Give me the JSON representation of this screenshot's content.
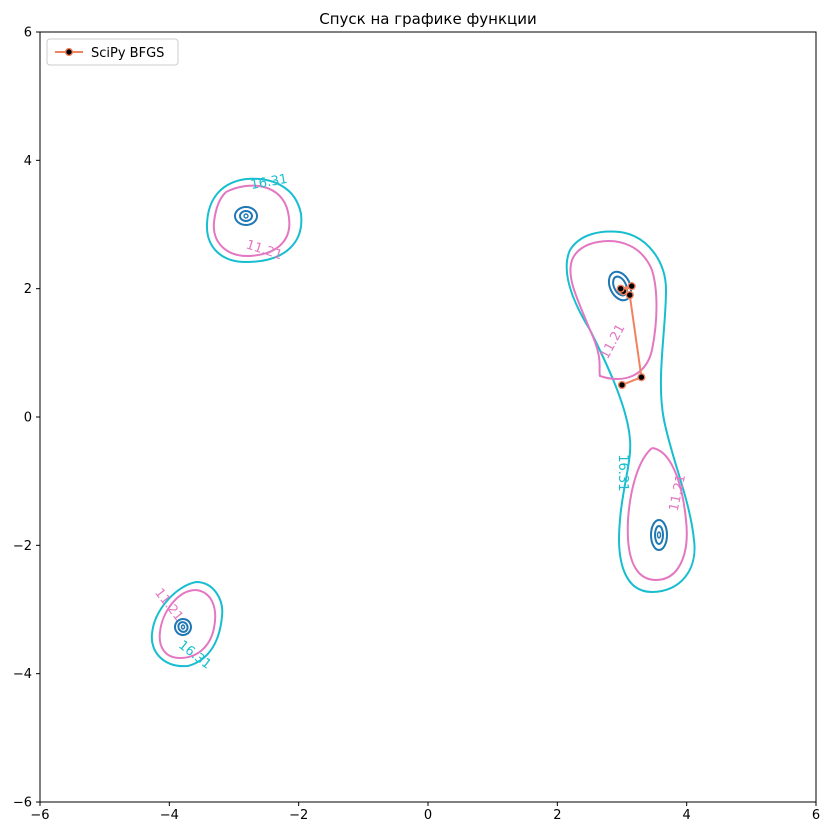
{
  "chart_data": {
    "type": "contour",
    "title": "Спуск на графике функции",
    "xlabel": "",
    "ylabel": "",
    "xlim": [
      -6,
      6
    ],
    "ylim": [
      -6,
      6
    ],
    "xticks": [
      -6,
      -4,
      -2,
      0,
      2,
      4,
      6
    ],
    "yticks": [
      -6,
      -4,
      -2,
      0,
      2,
      4,
      6
    ],
    "xtick_labels": [
      "−6",
      "−4",
      "−2",
      "0",
      "2",
      "4",
      "6"
    ],
    "ytick_labels": [
      "−6",
      "−4",
      "−2",
      "0",
      "2",
      "4",
      "6"
    ],
    "grid": false,
    "legend": {
      "placement": "top-left",
      "entries": [
        {
          "name": "SciPy BFGS",
          "color": "#f0825f"
        }
      ]
    },
    "contour_level_labels": [
      {
        "text": "16.31",
        "x": -2.46,
        "y": 3.67,
        "color": "#17becf",
        "angle": 10
      },
      {
        "text": "11.21",
        "x": -2.53,
        "y": 2.61,
        "color": "#e377c2",
        "angle": -18
      },
      {
        "text": "11.21",
        "x": 2.85,
        "y": 1.18,
        "color": "#e377c2",
        "angle": 62
      },
      {
        "text": "16.31",
        "x": 3.02,
        "y": -0.87,
        "color": "#17becf",
        "angle": -90
      },
      {
        "text": "11.21",
        "x": 3.85,
        "y": -1.18,
        "color": "#e377c2",
        "angle": 78
      },
      {
        "text": "11.21",
        "x": -4.0,
        "y": -2.92,
        "color": "#e377c2",
        "angle": -52
      },
      {
        "text": "16.31",
        "x": -3.6,
        "y": -3.7,
        "color": "#17becf",
        "angle": -38
      }
    ],
    "minima": [
      {
        "x": -2.81,
        "y": 3.13
      },
      {
        "x": 2.98,
        "y": 2.0
      },
      {
        "x": 3.58,
        "y": -1.85
      },
      {
        "x": -3.78,
        "y": -3.28
      }
    ],
    "series": [
      {
        "name": "SciPy BFGS",
        "color": "#f0825f",
        "points": [
          {
            "x": 3.0,
            "y": 0.5
          },
          {
            "x": 3.3,
            "y": 0.62
          },
          {
            "x": 3.12,
            "y": 1.9
          },
          {
            "x": 3.02,
            "y": 1.96
          },
          {
            "x": 3.15,
            "y": 2.04
          },
          {
            "x": 2.98,
            "y": 2.0
          }
        ]
      }
    ]
  }
}
